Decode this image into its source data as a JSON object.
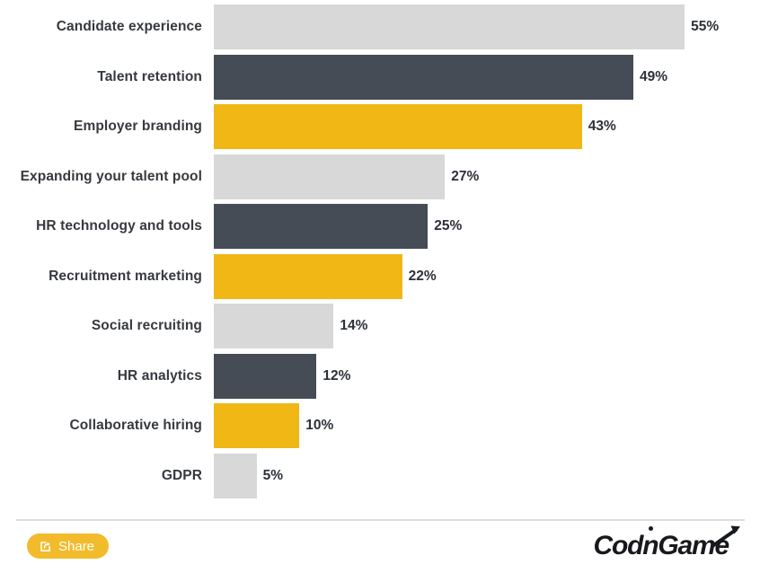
{
  "chart_data": {
    "type": "bar",
    "orientation": "horizontal",
    "title": "",
    "xlabel": "",
    "ylabel": "",
    "xlim": [
      0,
      62
    ],
    "grid": false,
    "legend": false,
    "categories": [
      "Candidate experience",
      "Talent retention",
      "Employer branding",
      "Expanding your talent pool",
      "HR technology and tools",
      "Recruitment marketing",
      "Social recruiting",
      "HR analytics",
      "Collaborative hiring",
      "GDPR"
    ],
    "values": [
      55,
      49,
      43,
      27,
      25,
      22,
      14,
      12,
      10,
      5
    ],
    "value_labels": [
      "55%",
      "49%",
      "43%",
      "27%",
      "25%",
      "22%",
      "14%",
      "12%",
      "10%",
      "5%"
    ],
    "bar_colors": [
      "#d8d8d8",
      "#454c56",
      "#f0b715",
      "#d8d8d8",
      "#454c56",
      "#f0b715",
      "#d8d8d8",
      "#454c56",
      "#f0b715",
      "#d8d8d8"
    ],
    "palette": {
      "light_gray": "#d8d8d8",
      "dark_slate": "#454c56",
      "brand_yellow": "#f0b715"
    }
  },
  "footer": {
    "share_label": "Share",
    "share_icon": "share-export-icon",
    "brand": {
      "text_before_dotted_n": "Cod",
      "dotted_n": "n",
      "text_after_dotted_n": "Game",
      "full_name": "CodinGame"
    }
  },
  "colors": {
    "background": "#ffffff",
    "category_text": "#36393e",
    "value_text": "#2c3038",
    "divider": "#dcdcdc",
    "share_button_bg": "#f2bb2b",
    "share_button_text": "#ffffff",
    "logo_text": "#17191d"
  }
}
